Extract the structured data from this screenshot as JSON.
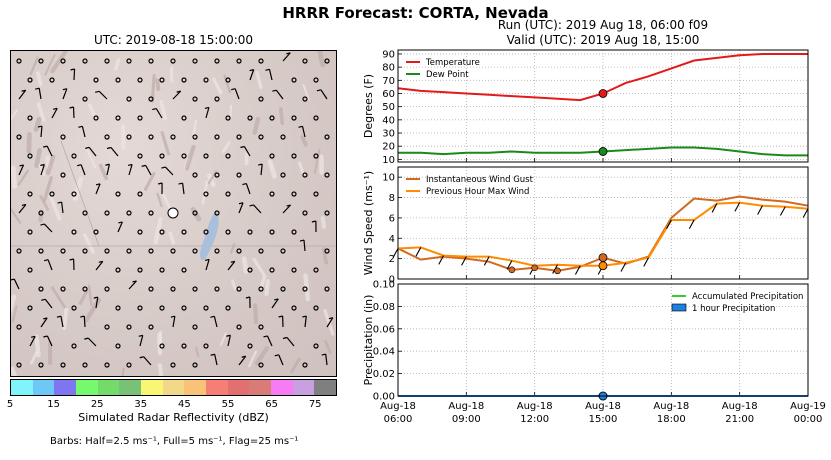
{
  "title": "HRRR Forecast: CORTA, Nevada",
  "map": {
    "title": "UTC: 2019-08-18 15:00:00",
    "colorbar_label": "Simulated Radar Reflectivity (dBZ)",
    "colorbar_ticks": [
      "5",
      "15",
      "25",
      "35",
      "45",
      "55",
      "65",
      "75"
    ],
    "colorbar_colors": [
      "#7ff4fb",
      "#6dc8f6",
      "#8075f0",
      "#76f96c",
      "#74da6a",
      "#79c275",
      "#f8f672",
      "#f2d98a",
      "#f8c379",
      "#f77e75",
      "#e27070",
      "#d97b77",
      "#f77cf4",
      "#c8a0e0",
      "#7f7f7f"
    ],
    "barb_note": "Barbs: Half=2.5 ms⁻¹, Full=5 ms⁻¹, Flag=25 ms⁻¹"
  },
  "run": {
    "line1": "Run (UTC): 2019 Aug 18, 06:00 f09",
    "line2": "Valid (UTC): 2019 Aug 18, 15:00"
  },
  "chart_data": [
    {
      "type": "line",
      "ylabel": "Degrees (F)",
      "ylim": [
        8,
        93
      ],
      "yticks": [
        10,
        20,
        30,
        40,
        50,
        60,
        70,
        80,
        90
      ],
      "x_hours": [
        0,
        1,
        2,
        3,
        4,
        5,
        6,
        7,
        8,
        9,
        10,
        11,
        12,
        13,
        14,
        15,
        16,
        17,
        18
      ],
      "xtick_labels": [
        [
          "Aug-18",
          "06:00"
        ],
        [
          "Aug-18",
          "09:00"
        ],
        [
          "Aug-18",
          "12:00"
        ],
        [
          "Aug-18",
          "15:00"
        ],
        [
          "Aug-18",
          "18:00"
        ],
        [
          "Aug-18",
          "21:00"
        ],
        [
          "Aug-19",
          "00:00"
        ]
      ],
      "grid": true,
      "legend_position": "top-left",
      "series": [
        {
          "name": "Temperature",
          "color": "#e31a1c",
          "values": [
            64,
            62,
            61,
            60,
            59,
            58,
            57,
            56,
            55,
            60,
            68,
            73,
            79,
            85,
            87,
            89,
            90,
            90,
            90
          ]
        },
        {
          "name": "Dew Point",
          "color": "#1a8a1a",
          "values": [
            15,
            15,
            14,
            15,
            15,
            16,
            15,
            15,
            15,
            16,
            17,
            18,
            19,
            19,
            18,
            16,
            14,
            13,
            13
          ]
        }
      ],
      "highlight_hour": 9
    },
    {
      "type": "line",
      "ylabel": "Wind Speed (ms⁻¹)",
      "ylim": [
        0,
        11
      ],
      "yticks": [
        0,
        2,
        4,
        6,
        8,
        10
      ],
      "grid": true,
      "legend_position": "top-left",
      "series": [
        {
          "name": "Instantaneous Wind Gust",
          "color": "#d2691e",
          "values": [
            3.0,
            1.9,
            2.2,
            2.0,
            1.7,
            0.9,
            1.1,
            0.8,
            1.2,
            2.1,
            1.5,
            2.2,
            6.0,
            7.9,
            7.7,
            8.1,
            7.8,
            7.6,
            7.2
          ]
        },
        {
          "name": "Previous Hour Max Wind",
          "color": "#ff8c00",
          "values": [
            3.0,
            3.1,
            2.3,
            2.2,
            2.2,
            1.8,
            1.3,
            1.4,
            1.3,
            1.3,
            1.6,
            2.1,
            5.8,
            5.8,
            7.4,
            7.5,
            7.2,
            7.1,
            6.9
          ]
        }
      ],
      "highlight_hour": 9
    },
    {
      "type": "line",
      "ylabel": "Precipitation (in)",
      "ylim": [
        0,
        0.1
      ],
      "yticks": [
        0.0,
        0.02,
        0.04,
        0.06,
        0.08,
        0.1
      ],
      "ytick_labels": [
        "0.00",
        "0.02",
        "0.04",
        "0.06",
        "0.08",
        "0.10"
      ],
      "grid": true,
      "legend_position": "top-right",
      "series": [
        {
          "name": "Accumulated Precipitation",
          "color": "#33cc33",
          "values": [
            0,
            0,
            0,
            0,
            0,
            0,
            0,
            0,
            0,
            0,
            0,
            0,
            0,
            0,
            0,
            0,
            0,
            0,
            0
          ]
        },
        {
          "name": "1 hour Precipitation",
          "color": "#1e7fe0",
          "values": [
            0,
            0,
            0,
            0,
            0,
            0,
            0,
            0,
            0,
            0,
            0,
            0,
            0,
            0,
            0,
            0,
            0,
            0,
            0
          ]
        }
      ],
      "highlight_hour": 9
    }
  ]
}
